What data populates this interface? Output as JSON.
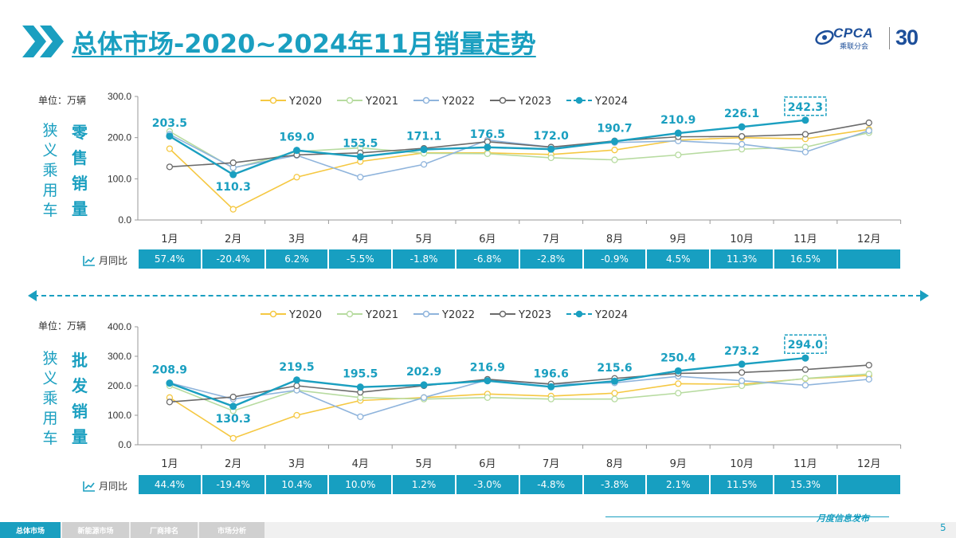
{
  "header": {
    "title": "总体市场-2020~2024年11月销量走势",
    "logo_text": "CPCA",
    "logo_subtitle": "乘联分会",
    "anniversary": "30"
  },
  "colors": {
    "accent": "#1a9fc0",
    "Y2020": "#f5c842",
    "Y2021": "#b7dba0",
    "Y2022": "#8fb4dc",
    "Y2023": "#6b6b6b",
    "Y2024": "#1a9fc0"
  },
  "retail": {
    "unit_label": "单位：万辆",
    "side_label_1": "狭义乘用车",
    "side_label_2": "零售销量",
    "yoy_label": "月同比",
    "yoy": [
      "57.4%",
      "-20.4%",
      "6.2%",
      "-5.5%",
      "-1.8%",
      "-6.8%",
      "-2.8%",
      "-0.9%",
      "4.5%",
      "11.3%",
      "16.5%",
      ""
    ]
  },
  "wholesale": {
    "unit_label": "单位：万辆",
    "side_label_1": "狭义乘用车",
    "side_label_2": "批发销量",
    "yoy_label": "月同比",
    "yoy": [
      "44.4%",
      "-19.4%",
      "10.4%",
      "10.0%",
      "1.2%",
      "-3.0%",
      "-4.8%",
      "-3.8%",
      "2.1%",
      "11.5%",
      "15.3%",
      ""
    ]
  },
  "chart_data": [
    {
      "type": "line",
      "title": "",
      "ylabel": "单位：万辆",
      "categories": [
        "1月",
        "2月",
        "3月",
        "4月",
        "5月",
        "6月",
        "7月",
        "8月",
        "9月",
        "10月",
        "11月",
        "12月"
      ],
      "ylim": [
        0,
        300
      ],
      "yticks": [
        "0.0",
        "100.0",
        "200.0",
        "300.0"
      ],
      "legend_position": "top",
      "series": [
        {
          "name": "Y2020",
          "values": [
            173,
            26,
            104,
            142,
            163,
            163,
            159,
            170,
            194,
            200,
            197,
            220
          ]
        },
        {
          "name": "Y2021",
          "values": [
            215,
            126,
            166,
            175,
            162,
            161,
            151,
            146,
            158,
            172,
            177,
            212
          ]
        },
        {
          "name": "Y2022",
          "values": [
            208,
            127,
            157,
            104,
            135,
            194,
            177,
            188,
            192,
            184,
            165,
            217
          ]
        },
        {
          "name": "Y2023",
          "values": [
            129,
            139,
            158,
            163,
            174,
            190,
            177,
            192,
            202,
            203,
            208,
            236
          ]
        },
        {
          "name": "Y2024",
          "values": [
            203.5,
            110.3,
            169.0,
            153.5,
            171.1,
            176.5,
            172.0,
            190.7,
            210.9,
            226.1,
            242.3,
            null
          ]
        }
      ],
      "data_labels": [
        "203.5",
        "110.3",
        "169.0",
        "153.5",
        "171.1",
        "176.5",
        "172.0",
        "190.7",
        "210.9",
        "226.1",
        "242.3"
      ]
    },
    {
      "type": "line",
      "title": "",
      "ylabel": "单位：万辆",
      "categories": [
        "1月",
        "2月",
        "3月",
        "4月",
        "5月",
        "6月",
        "7月",
        "8月",
        "9月",
        "10月",
        "11月",
        "12月"
      ],
      "ylim": [
        0,
        400
      ],
      "yticks": [
        "0.0",
        "100.0",
        "200.0",
        "300.0",
        "400.0"
      ],
      "legend_position": "top",
      "series": [
        {
          "name": "Y2020",
          "values": [
            160,
            22,
            100,
            150,
            160,
            172,
            165,
            175,
            207,
            205,
            224,
            235
          ]
        },
        {
          "name": "Y2021",
          "values": [
            200,
            115,
            185,
            160,
            155,
            160,
            155,
            155,
            175,
            200,
            225,
            240
          ]
        },
        {
          "name": "Y2022",
          "values": [
            210,
            155,
            185,
            95,
            160,
            220,
            205,
            210,
            232,
            217,
            202,
            222
          ]
        },
        {
          "name": "Y2023",
          "values": [
            145,
            162,
            200,
            178,
            200,
            222,
            206,
            225,
            242,
            245,
            255,
            270
          ]
        },
        {
          "name": "Y2024",
          "values": [
            208.9,
            130.3,
            219.5,
            195.5,
            202.9,
            216.9,
            196.6,
            215.6,
            250.4,
            273.2,
            294.0,
            null
          ]
        }
      ],
      "data_labels": [
        "208.9",
        "130.3",
        "219.5",
        "195.5",
        "202.9",
        "216.9",
        "196.6",
        "215.6",
        "250.4",
        "273.2",
        "294.0"
      ]
    }
  ],
  "footer": {
    "tabs": [
      "总体市场",
      "新能源市场",
      "厂商排名",
      "市场分析"
    ],
    "release_text": "月度信息发布",
    "page_number": "5"
  }
}
